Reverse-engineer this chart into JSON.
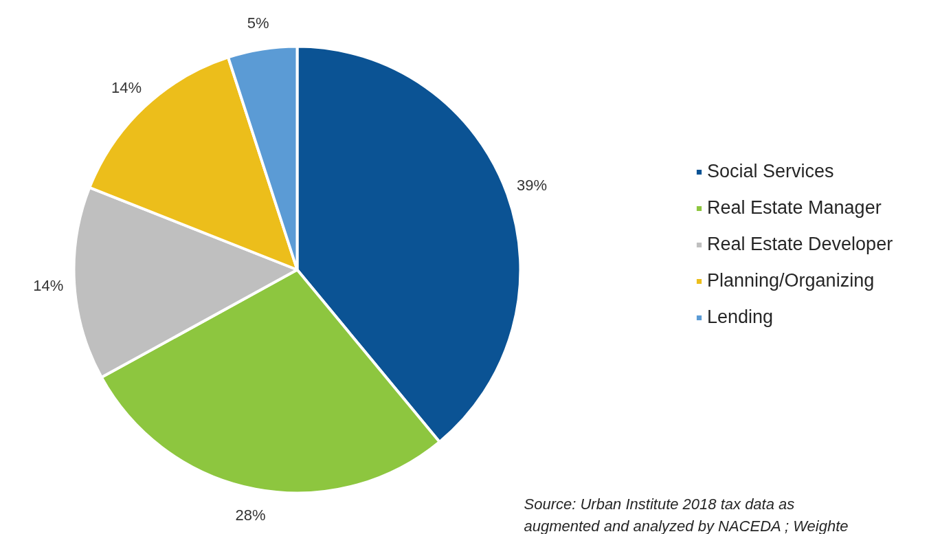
{
  "chart_data": {
    "type": "pie",
    "categories": [
      "Social Services",
      "Real Estate Manager",
      "Real Estate Developer",
      "Planning/Organizing",
      "Lending"
    ],
    "values": [
      39,
      28,
      14,
      14,
      5
    ],
    "value_labels": [
      "39%",
      "28%",
      "14%",
      "14%",
      "5%"
    ],
    "colors": [
      "#0b5394",
      "#8dc63f",
      "#bfbfbf",
      "#ecbe1b",
      "#5b9bd5"
    ],
    "legend": "right",
    "annotations": [
      "Source: Urban Institute 2018 tax data as\naugmented  and analyzed by NACEDA ; Weighte"
    ]
  }
}
